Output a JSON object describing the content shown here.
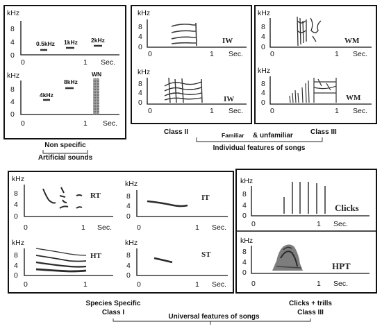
{
  "units": {
    "khz": "kHz",
    "sec": "Sec.",
    "zero": "0",
    "one": "1",
    "y8": "8",
    "y4": "4",
    "y0": "0"
  },
  "artificial": {
    "tones": [
      "0.5kHz",
      "1kHz",
      "2kHz",
      "4kHz",
      "8kHz"
    ],
    "noise": "WN",
    "caption_line1": "Non specific",
    "caption_line2": "Artificial sounds"
  },
  "individual": {
    "spectrogram_tags": [
      "IW",
      "IW",
      "WM",
      "WM"
    ],
    "class_left": "Class II",
    "class_middle_a": "Familiar",
    "class_middle_b": "& unfamiliar",
    "class_right": "Class III",
    "caption": "Individual features of songs"
  },
  "species": {
    "spectrogram_tags": [
      "RT",
      "IT",
      "HT",
      "ST"
    ],
    "caption_line1": "Species Specific",
    "caption_line2": "Class I"
  },
  "clicks": {
    "spectrogram_tags": [
      "Clicks",
      "HPT"
    ],
    "caption_line1": "Clicks + trills",
    "caption_line2": "Class III"
  },
  "universal_caption": "Universal features of songs",
  "colors": {
    "line": "#111111",
    "ink": "#2a2a2a",
    "noise": "#8a8a8a"
  }
}
